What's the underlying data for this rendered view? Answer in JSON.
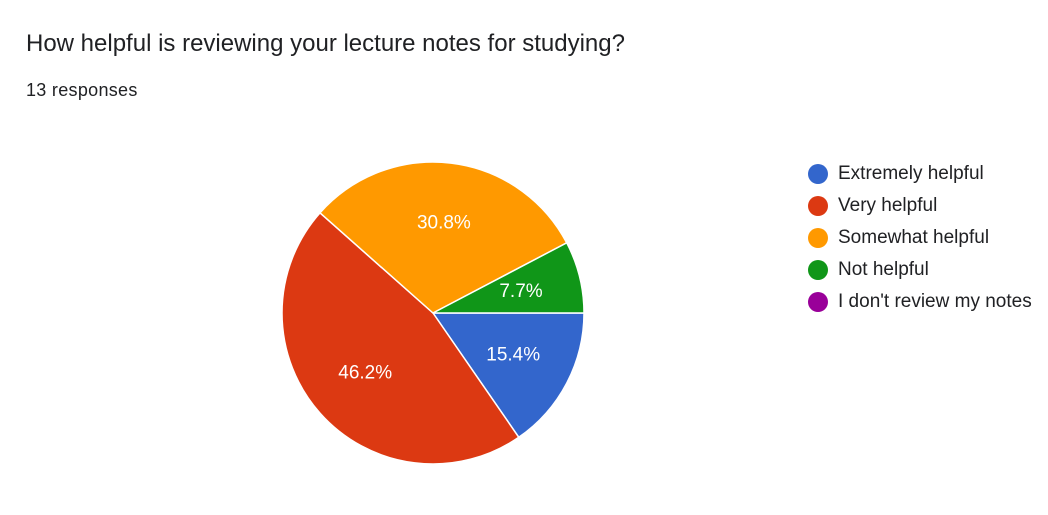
{
  "chart_data": {
    "type": "pie",
    "title": "How helpful is reviewing your lecture notes for studying?",
    "subtitle": "13 responses",
    "legend_position": "right",
    "categories": [
      "Extremely helpful",
      "Very helpful",
      "Somewhat helpful",
      "Not helpful",
      "I don't review my notes"
    ],
    "values": [
      2,
      6,
      4,
      1,
      0
    ],
    "labels": [
      "15.4%",
      "46.2%",
      "30.8%",
      "7.7%",
      ""
    ],
    "colors": [
      "#3366cc",
      "#dc3912",
      "#ff9900",
      "#109618",
      "#990099"
    ]
  }
}
